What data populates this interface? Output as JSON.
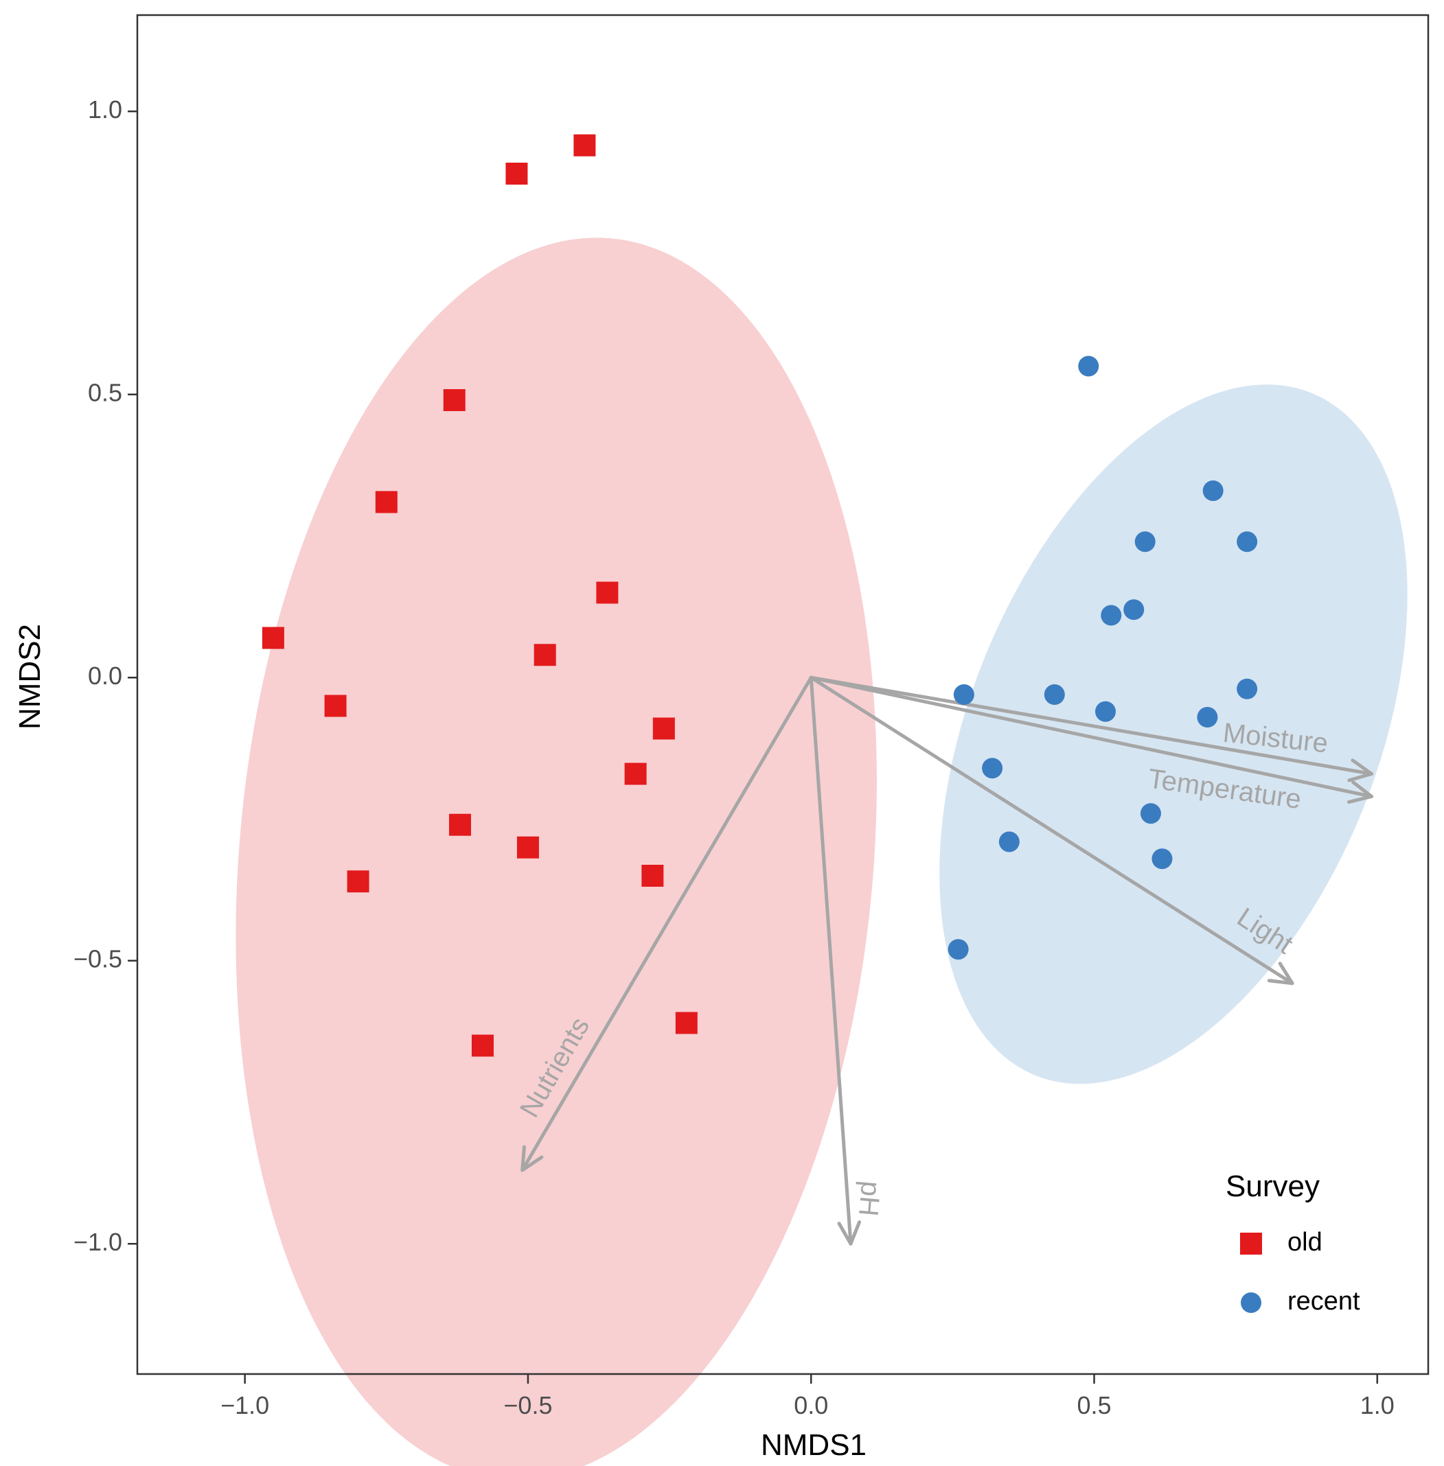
{
  "chart_data": {
    "type": "scatter",
    "title": "",
    "xlabel": "NMDS1",
    "ylabel": "NMDS2",
    "xlim": [
      -1.19,
      1.09
    ],
    "ylim": [
      -1.23,
      1.17
    ],
    "xticks": [
      -1.0,
      -0.5,
      0.0,
      0.5,
      1.0
    ],
    "xtick_labels": [
      "−1.0",
      "−0.5",
      "0.0",
      "0.5",
      "1.0"
    ],
    "yticks": [
      -1.0,
      -0.5,
      0.0,
      0.5,
      1.0
    ],
    "ytick_labels": [
      "−1.0",
      "−0.5",
      "0.0",
      "0.5",
      "1.0"
    ],
    "grid": false,
    "legend": {
      "title": "Survey",
      "position": "bottom-right",
      "entries": [
        {
          "label": "old",
          "marker": "square",
          "color": "#e31a1c"
        },
        {
          "label": "recent",
          "marker": "circle",
          "color": "#3a7cc0"
        }
      ]
    },
    "series": [
      {
        "name": "old",
        "marker": "square",
        "color": "#e31a1c",
        "ellipse": {
          "cx": -0.45,
          "cy": -0.32,
          "rx": 0.56,
          "ry": 1.1,
          "angle_deg": 5,
          "fill": "#f8d0d2"
        },
        "points": [
          {
            "x": -0.4,
            "y": 0.94
          },
          {
            "x": -0.52,
            "y": 0.89
          },
          {
            "x": -0.63,
            "y": 0.49
          },
          {
            "x": -0.75,
            "y": 0.31
          },
          {
            "x": -0.36,
            "y": 0.15
          },
          {
            "x": -0.95,
            "y": 0.07
          },
          {
            "x": -0.47,
            "y": 0.04
          },
          {
            "x": -0.84,
            "y": -0.05
          },
          {
            "x": -0.26,
            "y": -0.09
          },
          {
            "x": -0.31,
            "y": -0.17
          },
          {
            "x": -0.62,
            "y": -0.26
          },
          {
            "x": -0.5,
            "y": -0.3
          },
          {
            "x": -0.8,
            "y": -0.36
          },
          {
            "x": -0.28,
            "y": -0.35
          },
          {
            "x": -0.22,
            "y": -0.61
          },
          {
            "x": -0.58,
            "y": -0.65
          }
        ]
      },
      {
        "name": "recent",
        "marker": "circle",
        "color": "#3a7cc0",
        "ellipse": {
          "cx": 0.64,
          "cy": -0.1,
          "rx": 0.36,
          "ry": 0.65,
          "angle_deg": 22,
          "fill": "#d6e5f2"
        },
        "points": [
          {
            "x": 0.49,
            "y": 0.55
          },
          {
            "x": 0.71,
            "y": 0.33
          },
          {
            "x": 0.59,
            "y": 0.24
          },
          {
            "x": 0.77,
            "y": 0.24
          },
          {
            "x": 0.53,
            "y": 0.11
          },
          {
            "x": 0.57,
            "y": 0.12
          },
          {
            "x": 0.27,
            "y": -0.03
          },
          {
            "x": 0.43,
            "y": -0.03
          },
          {
            "x": 0.52,
            "y": -0.06
          },
          {
            "x": 0.7,
            "y": -0.07
          },
          {
            "x": 0.77,
            "y": -0.02
          },
          {
            "x": 0.32,
            "y": -0.16
          },
          {
            "x": 0.6,
            "y": -0.24
          },
          {
            "x": 0.35,
            "y": -0.29
          },
          {
            "x": 0.62,
            "y": -0.32
          },
          {
            "x": 0.26,
            "y": -0.48
          }
        ]
      }
    ],
    "vectors": [
      {
        "name": "Moisture",
        "x": 0.99,
        "y": -0.17,
        "label_x": 0.82,
        "label_y": -0.11,
        "label_angle": 6
      },
      {
        "name": "Temperature",
        "x": 0.99,
        "y": -0.21,
        "label_x": 0.73,
        "label_y": -0.2,
        "label_angle": 8
      },
      {
        "name": "Light",
        "x": 0.85,
        "y": -0.54,
        "label_x": 0.8,
        "label_y": -0.45,
        "label_angle": 33
      },
      {
        "name": "Nutrients",
        "x": -0.51,
        "y": -0.87,
        "label_x": -0.45,
        "label_y": -0.69,
        "label_angle": -60
      },
      {
        "name": "pH",
        "x": 0.07,
        "y": -1.0,
        "label_x": 0.1,
        "label_y": -0.92,
        "label_angle": 95
      }
    ],
    "vector_color": "#a6a6a6"
  }
}
